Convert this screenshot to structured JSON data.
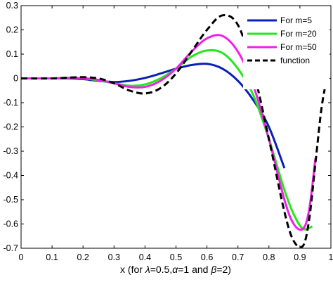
{
  "chart_data": {
    "type": "line",
    "xlabel_parts": {
      "prefix": "x (for ",
      "lambda_sym": "λ",
      "lambda_val": "=0.5,",
      "alpha_sym": "α",
      "alpha_val": "=1 and ",
      "beta_sym": "β",
      "beta_val": "=2)"
    },
    "xlim": [
      0,
      1
    ],
    "ylim": [
      -0.7,
      0.3
    ],
    "xticks": [
      "0",
      "0.1",
      "0.2",
      "0.3",
      "0.4",
      "0.5",
      "0.6",
      "0.7",
      "0.8",
      "0.9",
      "1"
    ],
    "yticks": [
      "0.3",
      "0.2",
      "0.1",
      "0",
      "-0.1",
      "-0.2",
      "-0.3",
      "-0.4",
      "-0.5",
      "-0.6",
      "-0.7"
    ],
    "legend_position": "top-right",
    "series": [
      {
        "name": "For m=5",
        "color": "#0a1fb5",
        "dash": "solid",
        "x": [
          0,
          0.1,
          0.15,
          0.2,
          0.25,
          0.3,
          0.35,
          0.4,
          0.45,
          0.5,
          0.55,
          0.6,
          0.65,
          0.7,
          0.75,
          0.8,
          0.85
        ],
        "y": [
          0,
          0,
          0,
          -0.003,
          -0.01,
          -0.015,
          -0.01,
          0.002,
          0.02,
          0.04,
          0.055,
          0.06,
          0.04,
          -0.01,
          -0.09,
          -0.2,
          -0.37
        ]
      },
      {
        "name": "For m=20",
        "color": "#22e81a",
        "dash": "solid",
        "x": [
          0,
          0.1,
          0.15,
          0.2,
          0.25,
          0.3,
          0.35,
          0.4,
          0.45,
          0.5,
          0.55,
          0.6,
          0.65,
          0.7,
          0.75,
          0.8,
          0.85,
          0.88,
          0.91,
          0.94
        ],
        "y": [
          0,
          0,
          0.002,
          0,
          -0.008,
          -0.02,
          -0.03,
          -0.025,
          0,
          0.04,
          0.09,
          0.115,
          0.105,
          0.04,
          -0.07,
          -0.25,
          -0.46,
          -0.56,
          -0.62,
          -0.61
        ]
      },
      {
        "name": "For m=50",
        "color": "#f020e8",
        "dash": "solid",
        "x": [
          0,
          0.1,
          0.15,
          0.2,
          0.25,
          0.3,
          0.35,
          0.4,
          0.45,
          0.5,
          0.55,
          0.6,
          0.65,
          0.7,
          0.75,
          0.8,
          0.85,
          0.88,
          0.91,
          0.93,
          0.95
        ],
        "y": [
          0,
          0,
          0.002,
          0.001,
          -0.006,
          -0.02,
          -0.035,
          -0.035,
          -0.01,
          0.04,
          0.11,
          0.165,
          0.175,
          0.11,
          -0.03,
          -0.25,
          -0.5,
          -0.6,
          -0.62,
          -0.54,
          -0.33
        ]
      },
      {
        "name": "function",
        "color": "#000000",
        "dash": "dashed",
        "x": [
          0,
          0.1,
          0.15,
          0.2,
          0.25,
          0.3,
          0.35,
          0.4,
          0.45,
          0.5,
          0.55,
          0.6,
          0.65,
          0.7,
          0.75,
          0.8,
          0.85,
          0.88,
          0.91,
          0.93,
          0.95,
          0.97,
          0.99
        ],
        "y": [
          0,
          0,
          0.003,
          0.005,
          0,
          -0.02,
          -0.05,
          -0.062,
          -0.04,
          0.02,
          0.11,
          0.2,
          0.26,
          0.22,
          0.03,
          -0.25,
          -0.55,
          -0.67,
          -0.69,
          -0.58,
          -0.35,
          -0.12,
          0.02
        ]
      }
    ]
  }
}
